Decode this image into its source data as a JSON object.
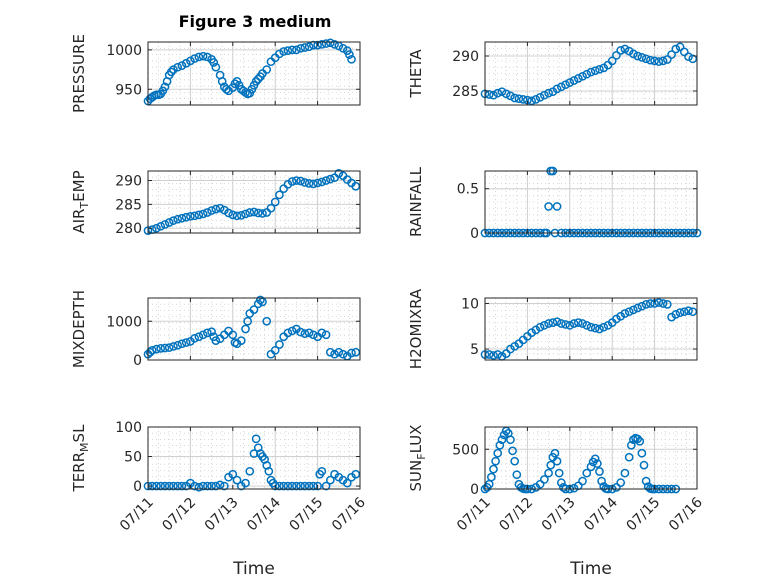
{
  "figure": {
    "title": "Figure 3 medium",
    "xlabel": "Time",
    "x_ticks": [
      "07/11",
      "07/12",
      "07/13",
      "07/14",
      "07/15",
      "07/16"
    ]
  },
  "chart_data": [
    {
      "type": "scatter",
      "ylabel": "PRESSURE",
      "xlim": [
        0,
        5
      ],
      "ylim": [
        930,
        1010
      ],
      "yticks": [
        950,
        1000
      ],
      "grid": true,
      "x": [
        0,
        0.05,
        0.1,
        0.15,
        0.2,
        0.25,
        0.3,
        0.35,
        0.4,
        0.45,
        0.5,
        0.55,
        0.6,
        0.7,
        0.8,
        0.9,
        1.0,
        1.1,
        1.2,
        1.3,
        1.4,
        1.5,
        1.55,
        1.6,
        1.7,
        1.75,
        1.8,
        1.85,
        1.9,
        2.0,
        2.05,
        2.1,
        2.15,
        2.2,
        2.25,
        2.3,
        2.35,
        2.4,
        2.45,
        2.5,
        2.55,
        2.6,
        2.65,
        2.7,
        2.8,
        2.9,
        3.0,
        3.1,
        3.2,
        3.3,
        3.4,
        3.5,
        3.6,
        3.7,
        3.8,
        3.9,
        4.0,
        4.1,
        4.2,
        4.3,
        4.4,
        4.5,
        4.6,
        4.7,
        4.75,
        4.8
      ],
      "y": [
        935,
        938,
        940,
        942,
        943,
        943,
        944,
        948,
        953,
        960,
        968,
        972,
        975,
        978,
        980,
        983,
        986,
        989,
        991,
        992,
        991,
        988,
        984,
        978,
        968,
        960,
        953,
        950,
        948,
        952,
        957,
        960,
        955,
        950,
        948,
        946,
        944,
        945,
        950,
        955,
        960,
        963,
        966,
        970,
        975,
        985,
        990,
        995,
        998,
        999,
        1000,
        1000,
        1002,
        1003,
        1004,
        1006,
        1006,
        1007,
        1008,
        1009,
        1007,
        1005,
        1002,
        999,
        994,
        988
      ]
    },
    {
      "type": "scatter",
      "ylabel": "THETA",
      "xlim": [
        0,
        5
      ],
      "ylim": [
        283,
        292
      ],
      "yticks": [
        285,
        290
      ],
      "grid": true,
      "x": [
        0,
        0.1,
        0.2,
        0.3,
        0.4,
        0.5,
        0.6,
        0.7,
        0.8,
        0.9,
        1.0,
        1.1,
        1.2,
        1.3,
        1.4,
        1.5,
        1.6,
        1.7,
        1.8,
        1.9,
        2.0,
        2.1,
        2.2,
        2.3,
        2.4,
        2.5,
        2.6,
        2.7,
        2.8,
        2.9,
        3.0,
        3.1,
        3.2,
        3.3,
        3.4,
        3.5,
        3.6,
        3.7,
        3.8,
        3.9,
        4.0,
        4.1,
        4.2,
        4.3,
        4.4,
        4.5,
        4.6,
        4.7,
        4.8,
        4.9
      ],
      "y": [
        284.6,
        284.5,
        284.4,
        284.7,
        284.9,
        284.6,
        284.3,
        284.0,
        283.9,
        283.8,
        283.7,
        283.6,
        283.8,
        284.1,
        284.4,
        284.7,
        284.9,
        285.3,
        285.6,
        285.9,
        286.2,
        286.5,
        286.8,
        287.1,
        287.4,
        287.7,
        287.9,
        288.1,
        288.3,
        288.7,
        289.3,
        290.1,
        290.8,
        291.0,
        290.7,
        290.3,
        290.0,
        289.8,
        289.6,
        289.4,
        289.3,
        289.2,
        289.3,
        289.5,
        290.2,
        291.0,
        291.3,
        290.6,
        289.9,
        289.6
      ]
    },
    {
      "type": "scatter",
      "ylabel": "AIR_TEMP",
      "xlim": [
        0,
        5
      ],
      "ylim": [
        279,
        292
      ],
      "yticks": [
        280,
        285,
        290
      ],
      "grid": true,
      "x": [
        0,
        0.1,
        0.2,
        0.3,
        0.4,
        0.5,
        0.6,
        0.7,
        0.8,
        0.9,
        1.0,
        1.1,
        1.2,
        1.3,
        1.4,
        1.5,
        1.6,
        1.7,
        1.8,
        1.9,
        2.0,
        2.1,
        2.2,
        2.3,
        2.4,
        2.5,
        2.6,
        2.7,
        2.8,
        2.9,
        3.0,
        3.1,
        3.2,
        3.3,
        3.4,
        3.5,
        3.6,
        3.7,
        3.8,
        3.9,
        4.0,
        4.1,
        4.2,
        4.3,
        4.4,
        4.5,
        4.6,
        4.7,
        4.8,
        4.9
      ],
      "y": [
        279.5,
        279.7,
        280.0,
        280.4,
        280.8,
        281.2,
        281.6,
        281.9,
        282.1,
        282.3,
        282.5,
        282.6,
        282.8,
        283.0,
        283.3,
        283.7,
        284.0,
        284.2,
        283.8,
        283.2,
        282.8,
        282.6,
        282.7,
        283.0,
        283.3,
        283.4,
        283.2,
        283.1,
        283.3,
        284.2,
        285.5,
        287.0,
        288.3,
        289.2,
        289.8,
        290.0,
        289.9,
        289.6,
        289.4,
        289.3,
        289.5,
        289.7,
        290.0,
        290.3,
        290.6,
        291.5,
        291.0,
        290.2,
        289.5,
        288.8
      ]
    },
    {
      "type": "scatter",
      "ylabel": "RAINFALL",
      "xlim": [
        0,
        5
      ],
      "ylim": [
        0,
        0.7
      ],
      "yticks": [
        0,
        0.5
      ],
      "grid": true,
      "x": [
        0,
        0.1,
        0.2,
        0.3,
        0.4,
        0.5,
        0.6,
        0.7,
        0.8,
        0.9,
        1.0,
        1.1,
        1.2,
        1.3,
        1.4,
        1.45,
        1.5,
        1.55,
        1.6,
        1.65,
        1.7,
        1.8,
        1.9,
        2.0,
        2.1,
        2.2,
        2.3,
        2.4,
        2.5,
        2.6,
        2.7,
        2.8,
        2.9,
        3.0,
        3.1,
        3.2,
        3.3,
        3.4,
        3.5,
        3.6,
        3.7,
        3.8,
        3.9,
        4.0,
        4.1,
        4.2,
        4.3,
        4.4,
        4.5,
        4.6,
        4.7,
        4.8,
        4.9,
        5.0
      ],
      "y": [
        0,
        0,
        0,
        0,
        0,
        0,
        0,
        0,
        0,
        0,
        0,
        0,
        0,
        0,
        0,
        0,
        0.3,
        0.7,
        0.7,
        0,
        0.3,
        0,
        0,
        0,
        0,
        0,
        0,
        0,
        0,
        0,
        0,
        0,
        0,
        0,
        0,
        0,
        0,
        0,
        0,
        0,
        0,
        0,
        0,
        0,
        0,
        0,
        0,
        0,
        0,
        0,
        0,
        0,
        0,
        0
      ]
    },
    {
      "type": "scatter",
      "ylabel": "MIXDEPTH",
      "xlim": [
        0,
        5
      ],
      "ylim": [
        0,
        1600
      ],
      "yticks": [
        0,
        1000
      ],
      "grid": true,
      "x": [
        0,
        0.05,
        0.1,
        0.2,
        0.3,
        0.4,
        0.5,
        0.6,
        0.7,
        0.8,
        0.9,
        1.0,
        1.1,
        1.2,
        1.3,
        1.4,
        1.5,
        1.55,
        1.6,
        1.7,
        1.8,
        1.9,
        2.0,
        2.05,
        2.1,
        2.2,
        2.3,
        2.35,
        2.4,
        2.5,
        2.6,
        2.65,
        2.7,
        2.8,
        2.9,
        3.0,
        3.1,
        3.2,
        3.3,
        3.4,
        3.5,
        3.6,
        3.7,
        3.8,
        3.9,
        4.0,
        4.1,
        4.2,
        4.3,
        4.4,
        4.5,
        4.6,
        4.7,
        4.8,
        4.9
      ],
      "y": [
        150,
        200,
        250,
        280,
        300,
        310,
        320,
        350,
        380,
        420,
        450,
        480,
        560,
        600,
        650,
        700,
        730,
        600,
        500,
        550,
        650,
        750,
        650,
        450,
        420,
        500,
        800,
        1000,
        1200,
        1300,
        1450,
        1550,
        1500,
        1000,
        150,
        250,
        400,
        600,
        700,
        750,
        800,
        720,
        680,
        700,
        650,
        600,
        700,
        650,
        200,
        150,
        200,
        150,
        100,
        180,
        200
      ]
    },
    {
      "type": "scatter",
      "ylabel": "H2OMIXRA",
      "xlim": [
        0,
        5
      ],
      "ylim": [
        3.8,
        10.6
      ],
      "yticks": [
        5,
        10
      ],
      "grid": true,
      "x": [
        0,
        0.1,
        0.2,
        0.3,
        0.4,
        0.5,
        0.6,
        0.7,
        0.8,
        0.9,
        1.0,
        1.1,
        1.2,
        1.3,
        1.4,
        1.5,
        1.6,
        1.7,
        1.8,
        1.9,
        2.0,
        2.1,
        2.2,
        2.3,
        2.4,
        2.5,
        2.6,
        2.7,
        2.8,
        2.9,
        3.0,
        3.1,
        3.2,
        3.3,
        3.4,
        3.5,
        3.6,
        3.7,
        3.8,
        3.9,
        4.0,
        4.1,
        4.2,
        4.3,
        4.4,
        4.5,
        4.6,
        4.7,
        4.8,
        4.9
      ],
      "y": [
        4.4,
        4.4,
        4.3,
        4.4,
        4.2,
        4.5,
        5.0,
        5.3,
        5.6,
        6.0,
        6.4,
        6.8,
        7.1,
        7.4,
        7.6,
        7.8,
        7.9,
        8.0,
        7.8,
        7.7,
        7.6,
        7.8,
        7.9,
        7.8,
        7.6,
        7.4,
        7.3,
        7.2,
        7.4,
        7.6,
        7.9,
        8.3,
        8.6,
        8.9,
        9.1,
        9.3,
        9.5,
        9.7,
        9.9,
        10.0,
        10.0,
        10.1,
        10.0,
        9.9,
        8.5,
        8.8,
        9.0,
        9.1,
        9.2,
        9.1
      ]
    },
    {
      "type": "scatter",
      "ylabel": "TERR_MSL",
      "xlim": [
        0,
        5
      ],
      "ylim": [
        -5,
        100
      ],
      "yticks": [
        0,
        50,
        100
      ],
      "grid": true,
      "x": [
        0,
        0.1,
        0.2,
        0.3,
        0.4,
        0.5,
        0.6,
        0.7,
        0.8,
        0.9,
        1.0,
        1.1,
        1.2,
        1.3,
        1.4,
        1.5,
        1.6,
        1.7,
        1.8,
        1.9,
        2.0,
        2.1,
        2.2,
        2.3,
        2.4,
        2.5,
        2.55,
        2.6,
        2.65,
        2.7,
        2.75,
        2.8,
        2.85,
        2.9,
        2.95,
        3.0,
        3.1,
        3.2,
        3.3,
        3.4,
        3.5,
        3.6,
        3.7,
        3.8,
        3.9,
        4.0,
        4.05,
        4.1,
        4.2,
        4.3,
        4.4,
        4.5,
        4.6,
        4.7,
        4.8,
        4.9
      ],
      "y": [
        0,
        0,
        0,
        0,
        0,
        0,
        0,
        0,
        0,
        0,
        5,
        0,
        -2,
        0,
        0,
        0,
        0,
        2,
        0,
        15,
        20,
        10,
        0,
        5,
        25,
        55,
        80,
        65,
        55,
        50,
        45,
        35,
        25,
        10,
        5,
        0,
        0,
        0,
        0,
        0,
        0,
        0,
        0,
        0,
        0,
        0,
        20,
        25,
        0,
        10,
        20,
        15,
        10,
        5,
        15,
        20
      ]
    },
    {
      "type": "scatter",
      "ylabel": "SUN_FLUX",
      "xlim": [
        0,
        5
      ],
      "ylim": [
        0,
        780
      ],
      "yticks": [
        0,
        500
      ],
      "grid": true,
      "x": [
        0,
        0.05,
        0.1,
        0.15,
        0.2,
        0.25,
        0.3,
        0.35,
        0.4,
        0.45,
        0.5,
        0.55,
        0.6,
        0.65,
        0.7,
        0.75,
        0.8,
        0.85,
        0.9,
        0.95,
        1.0,
        1.1,
        1.2,
        1.3,
        1.4,
        1.5,
        1.55,
        1.6,
        1.65,
        1.7,
        1.75,
        1.8,
        1.85,
        1.9,
        2.0,
        2.1,
        2.2,
        2.3,
        2.4,
        2.5,
        2.55,
        2.6,
        2.65,
        2.7,
        2.75,
        2.8,
        2.85,
        2.9,
        3.0,
        3.1,
        3.2,
        3.3,
        3.4,
        3.45,
        3.5,
        3.55,
        3.6,
        3.65,
        3.7,
        3.75,
        3.8,
        3.85,
        3.9,
        3.95,
        4.0,
        4.1,
        4.2,
        4.3,
        4.4,
        4.5
      ],
      "y": [
        0,
        20,
        60,
        150,
        250,
        350,
        450,
        550,
        620,
        680,
        730,
        700,
        620,
        480,
        350,
        180,
        60,
        20,
        5,
        0,
        0,
        0,
        20,
        60,
        120,
        200,
        300,
        400,
        450,
        350,
        200,
        80,
        20,
        0,
        0,
        10,
        40,
        100,
        200,
        280,
        340,
        380,
        320,
        220,
        100,
        30,
        5,
        0,
        0,
        20,
        80,
        200,
        400,
        550,
        620,
        640,
        630,
        600,
        450,
        300,
        100,
        30,
        5,
        0,
        0,
        0,
        0,
        0,
        0,
        0
      ]
    }
  ]
}
